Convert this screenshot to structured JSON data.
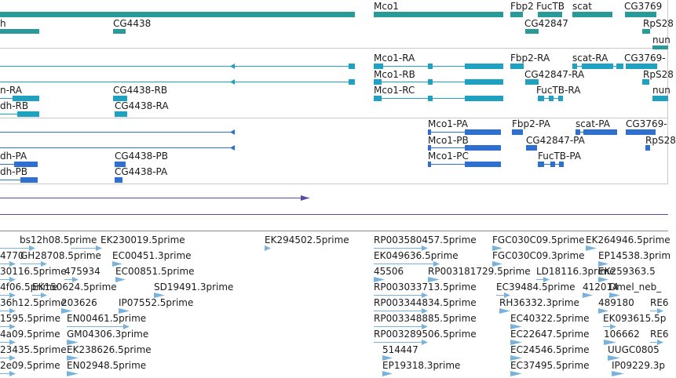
{
  "colors": {
    "gene": "#2a9a98",
    "mrna": "#1fa2c2",
    "cds": "#2f6fd0",
    "other": "#5a4aa8",
    "est": "#79b3dc",
    "separator": "#c9c9c9"
  },
  "tracks": {
    "genes": {
      "labels": [
        "h",
        "CG4438",
        "Mco1",
        "Fbp2",
        "FucTB",
        "scat",
        "CG3769",
        "CG42847",
        "RpS28",
        "nun"
      ]
    },
    "transcripts": {
      "labels": [
        "n-RA",
        "dh-RB",
        "CG4438-RB",
        "CG4438-RA",
        "Mco1-RA",
        "Mco1-RB",
        "Mco1-RC",
        "Fbp2-RA",
        "scat-RA",
        "CG3769-",
        "CG42847-RA",
        "RpS28",
        "FucTB-RA",
        "nun"
      ]
    },
    "cds": {
      "labels": [
        "dh-PA",
        "dh-PB",
        "CG4438-PB",
        "CG4438-PA",
        "Mco1-PA",
        "Mco1-PB",
        "Mco1-PC",
        "Fbp2-PA",
        "scat-PA",
        "CG3769-",
        "CG42847-PA",
        "RpS28",
        "FucTB-PA"
      ]
    },
    "ests": {
      "labels": [
        "bs12h08.5prime",
        "EK230019.5prime",
        "EK294502.5prime",
        "RP003580457.5prime",
        "FGC030C09.5prime",
        "EK264946.5prime",
        "4770",
        "GH28708.5prime",
        "EC00451.3prime",
        "EK049636.5prime",
        "FGC030C09.3prime",
        "EP14538.3prim",
        "30116.5prime",
        "475934",
        "EC00851.5prime",
        "45506",
        "RP003181729.5prime",
        "LD18116.3prime",
        "EK259363.5",
        "4f06.5prime",
        "EK150624.5prime",
        "SD19491.3prime",
        "RP003033713.5prime",
        "EC39484.5prime",
        "412014",
        "Dmel_neb_",
        "36h12.5prime",
        "203626",
        "IP07552.5prime",
        "RP003344834.5prime",
        "RH36332.3prime",
        "489180",
        "RE6",
        "1595.5prime",
        "EN00461.5prime",
        "RP003348885.5prime",
        "EC40322.5prime",
        "EK093615.5p",
        "4a09.5prime",
        "GM04306.3prime",
        "RP003289506.5prime",
        "EC22647.5prime",
        "106662",
        "RE6",
        "23435.5prime",
        "EK238626.5prime",
        "514447",
        "EC24546.5prime",
        "UUGC0805",
        "2e09.5prime",
        "EN02948.5prime",
        "EP19318.3prime",
        "EC37495.5prime",
        "IP09229.3p"
      ]
    }
  }
}
